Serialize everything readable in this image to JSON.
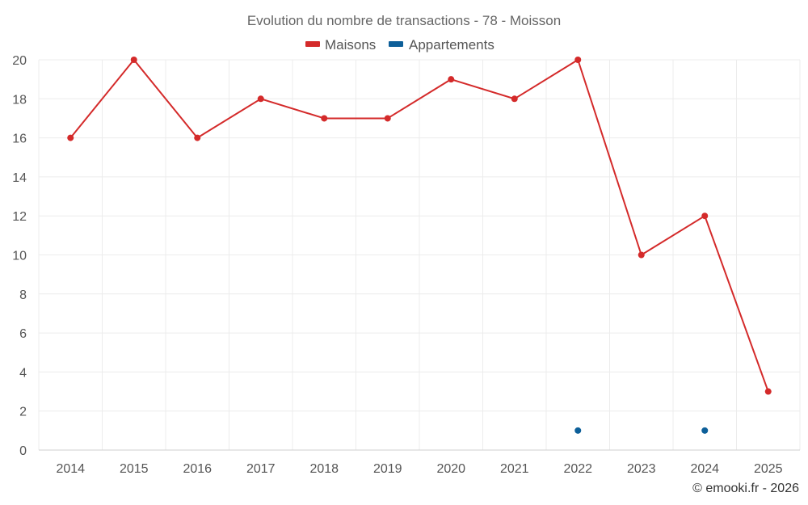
{
  "chart_data": {
    "type": "line",
    "title": "Evolution du nombre de transactions - 78 - Moisson",
    "categories": [
      "2014",
      "2015",
      "2016",
      "2017",
      "2018",
      "2019",
      "2020",
      "2021",
      "2022",
      "2023",
      "2024",
      "2025"
    ],
    "series": [
      {
        "name": "Maisons",
        "color": "#d42a2a",
        "values": [
          16,
          20,
          16,
          18,
          17,
          17,
          19,
          18,
          20,
          10,
          12,
          3
        ]
      },
      {
        "name": "Appartements",
        "color": "#0d5f99",
        "values": [
          null,
          null,
          null,
          null,
          null,
          null,
          null,
          null,
          1,
          null,
          1,
          null
        ]
      }
    ],
    "ylim": [
      0,
      20
    ],
    "yticks": [
      0,
      2,
      4,
      6,
      8,
      10,
      12,
      14,
      16,
      18,
      20
    ],
    "grid": true,
    "legend": "top-center"
  },
  "credit": "© emooki.fr - 2026"
}
